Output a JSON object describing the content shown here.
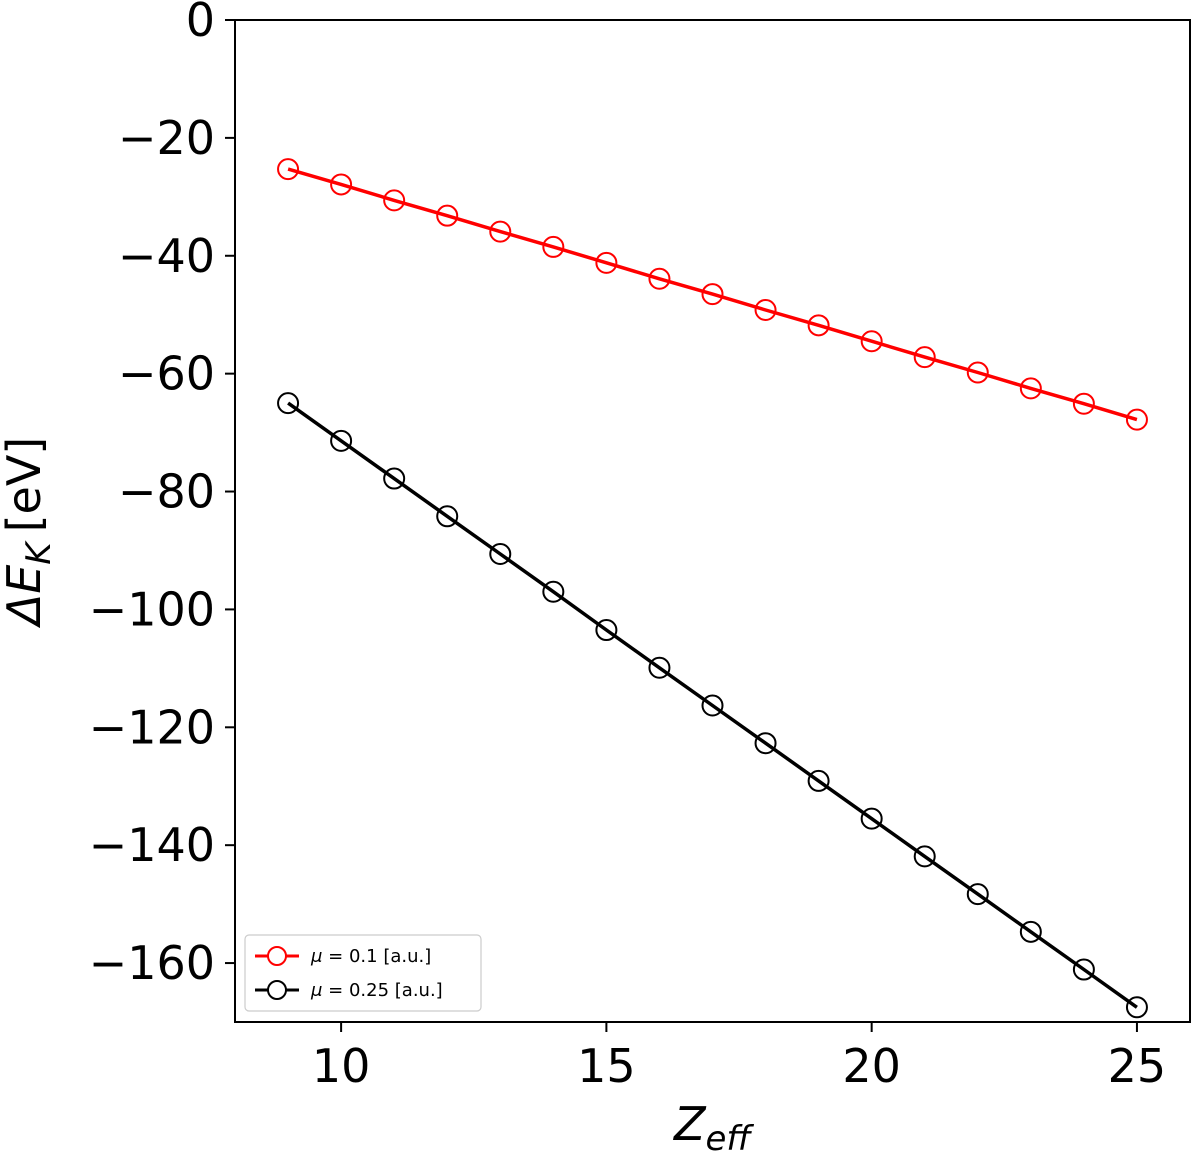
{
  "chart_data": {
    "type": "line",
    "xlabel": "Z",
    "xlabel_sub": "eff",
    "ylabel": "ΔE",
    "ylabel_sub": "K",
    "ylabel_unit": "[eV]",
    "xlim": [
      8,
      26
    ],
    "ylim": [
      -170,
      0
    ],
    "xticks": [
      10,
      15,
      20,
      25
    ],
    "yticks": [
      0,
      -20,
      -40,
      -60,
      -80,
      -100,
      -120,
      -140,
      -160
    ],
    "xtick_labels": [
      "10",
      "15",
      "20",
      "25"
    ],
    "ytick_labels": [
      "0",
      "−20",
      "−40",
      "−60",
      "−80",
      "−100",
      "−120",
      "−140",
      "−160"
    ],
    "grid": false,
    "legend_position": "bottom-left",
    "x": [
      9,
      10,
      11,
      12,
      13,
      14,
      15,
      16,
      17,
      18,
      19,
      20,
      21,
      22,
      23,
      24,
      25
    ],
    "series": [
      {
        "name": "μ = 0.1 [a.u.]",
        "name_symbol": "μ",
        "name_rest": " = 0.1 [a.u.]",
        "color": "#ff0000",
        "marker": "open-circle",
        "values": [
          -25.3,
          -27.9,
          -30.6,
          -33.2,
          -35.9,
          -38.5,
          -41.2,
          -43.9,
          -46.5,
          -49.2,
          -51.8,
          -54.5,
          -57.2,
          -59.8,
          -62.5,
          -65.1,
          -67.8
        ]
      },
      {
        "name": "μ = 0.25 [a.u.]",
        "name_symbol": "μ",
        "name_rest": " = 0.25 [a.u.]",
        "color": "#000000",
        "marker": "open-circle",
        "values": [
          -65.0,
          -71.4,
          -77.8,
          -84.2,
          -90.6,
          -97.0,
          -103.5,
          -109.9,
          -116.3,
          -122.7,
          -129.1,
          -135.5,
          -141.9,
          -148.3,
          -154.7,
          -161.1,
          -167.5
        ]
      }
    ]
  }
}
